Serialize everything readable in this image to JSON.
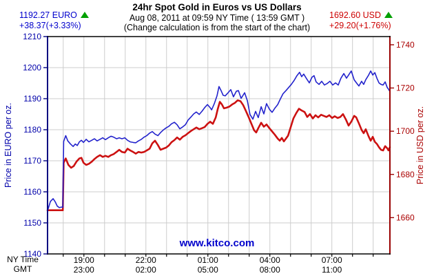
{
  "header": {
    "title": "24hr Spot Gold in Euros vs US Dollars",
    "subtitle": "Aug 08, 2011 at 09:59 NY Time ( 13:59 GMT )",
    "note": "(Change calculation is from the start of the chart)"
  },
  "quotes": {
    "euro": {
      "price": "1192.27 EURO",
      "change": "+38.37(+3.33%)",
      "direction": "up",
      "color": "#0000cc",
      "arrow_color": "#00a000"
    },
    "usd": {
      "price": "1692.60 USD",
      "change": "+29.20(+1.76%)",
      "direction": "up",
      "color": "#cc0000",
      "arrow_color": "#00a000"
    }
  },
  "watermark": {
    "text": "www.kitco.com",
    "color": "#0000cc"
  },
  "chart_data": {
    "type": "line",
    "title": "24hr Spot Gold in Euros vs US Dollars",
    "grid": true,
    "grid_color": "#cccccc",
    "spine_colors": {
      "left": "#000080",
      "right": "#990000",
      "top": "#000000",
      "bottom": "#000000"
    },
    "x_axis": {
      "t_min": 17.24,
      "t_max": 33.81,
      "grid_hours": [
        18,
        19,
        20,
        21,
        22,
        23,
        24,
        25,
        26,
        27,
        28,
        29,
        30,
        31,
        32,
        33
      ],
      "labels": [
        {
          "t": 19,
          "ny": "19:00",
          "gmt": "23:00"
        },
        {
          "t": 22,
          "ny": "22:00",
          "gmt": "02:00"
        },
        {
          "t": 25,
          "ny": "01:00",
          "gmt": "05:00"
        },
        {
          "t": 28,
          "ny": "04:00",
          "gmt": "08:00"
        },
        {
          "t": 31,
          "ny": "07:00",
          "gmt": "11:00"
        }
      ],
      "row_labels": {
        "ny": "NY Time",
        "gmt": "GMT"
      }
    },
    "y_left": {
      "label": "Price in EURO per oz.",
      "min": 1140,
      "max": 1210,
      "ticks": [
        1140,
        1150,
        1160,
        1170,
        1180,
        1190,
        1200,
        1210
      ],
      "grid_ticks": [
        1150,
        1160,
        1170,
        1180,
        1190,
        1200
      ],
      "color": "#0000aa"
    },
    "y_right": {
      "label": "Price in USD per oz.",
      "min": 1643.2,
      "max": 1743.8,
      "ticks": [
        1660,
        1680,
        1700,
        1720,
        1740
      ],
      "color": "#aa0000"
    },
    "series": [
      {
        "name": "Gold in USD",
        "axis": "right",
        "color": "#cc1111",
        "width": 2.6,
        "points": [
          [
            17.24,
            1663.4
          ],
          [
            17.98,
            1663.4
          ],
          [
            18.02,
            1685.4
          ],
          [
            18.12,
            1687.4
          ],
          [
            18.25,
            1684.4
          ],
          [
            18.38,
            1683.1
          ],
          [
            18.51,
            1683.9
          ],
          [
            18.64,
            1685.9
          ],
          [
            18.78,
            1687.4
          ],
          [
            18.88,
            1687.7
          ],
          [
            18.98,
            1685.4
          ],
          [
            19.11,
            1684.4
          ],
          [
            19.24,
            1684.9
          ],
          [
            19.38,
            1685.9
          ],
          [
            19.51,
            1687.1
          ],
          [
            19.64,
            1688.1
          ],
          [
            19.78,
            1688.9
          ],
          [
            19.91,
            1688.1
          ],
          [
            20.04,
            1688.6
          ],
          [
            20.18,
            1688.1
          ],
          [
            20.31,
            1688.9
          ],
          [
            20.44,
            1689.4
          ],
          [
            20.58,
            1690.4
          ],
          [
            20.71,
            1691.4
          ],
          [
            20.84,
            1690.4
          ],
          [
            20.98,
            1690.1
          ],
          [
            21.11,
            1691.9
          ],
          [
            21.24,
            1691.1
          ],
          [
            21.38,
            1690.4
          ],
          [
            21.51,
            1689.6
          ],
          [
            21.64,
            1690.4
          ],
          [
            21.78,
            1690.1
          ],
          [
            21.91,
            1690.4
          ],
          [
            22.04,
            1691.1
          ],
          [
            22.18,
            1691.9
          ],
          [
            22.31,
            1694.4
          ],
          [
            22.44,
            1695.6
          ],
          [
            22.58,
            1693.6
          ],
          [
            22.71,
            1691.4
          ],
          [
            22.84,
            1691.9
          ],
          [
            22.98,
            1692.4
          ],
          [
            23.11,
            1693.4
          ],
          [
            23.24,
            1694.9
          ],
          [
            23.38,
            1695.9
          ],
          [
            23.51,
            1697.1
          ],
          [
            23.64,
            1696.1
          ],
          [
            23.78,
            1697.4
          ],
          [
            23.91,
            1698.1
          ],
          [
            24.04,
            1699.1
          ],
          [
            24.18,
            1700.1
          ],
          [
            24.31,
            1700.9
          ],
          [
            24.44,
            1701.7
          ],
          [
            24.58,
            1700.9
          ],
          [
            24.71,
            1701.4
          ],
          [
            24.84,
            1701.9
          ],
          [
            24.98,
            1703.4
          ],
          [
            25.11,
            1704.4
          ],
          [
            25.24,
            1703.4
          ],
          [
            25.38,
            1706.4
          ],
          [
            25.48,
            1710.4
          ],
          [
            25.58,
            1713.6
          ],
          [
            25.68,
            1712.4
          ],
          [
            25.78,
            1710.6
          ],
          [
            25.91,
            1710.9
          ],
          [
            26.04,
            1711.4
          ],
          [
            26.18,
            1712.4
          ],
          [
            26.31,
            1713.1
          ],
          [
            26.44,
            1714.3
          ],
          [
            26.58,
            1713.9
          ],
          [
            26.71,
            1712.1
          ],
          [
            26.84,
            1709.4
          ],
          [
            26.98,
            1706.4
          ],
          [
            27.11,
            1703.4
          ],
          [
            27.24,
            1700.4
          ],
          [
            27.34,
            1699.4
          ],
          [
            27.44,
            1701.4
          ],
          [
            27.58,
            1703.9
          ],
          [
            27.71,
            1702.1
          ],
          [
            27.84,
            1703.1
          ],
          [
            27.98,
            1701.4
          ],
          [
            28.11,
            1699.9
          ],
          [
            28.24,
            1698.4
          ],
          [
            28.38,
            1696.6
          ],
          [
            28.48,
            1695.6
          ],
          [
            28.58,
            1696.9
          ],
          [
            28.68,
            1695.3
          ],
          [
            28.78,
            1696.6
          ],
          [
            28.88,
            1697.9
          ],
          [
            29.01,
            1701.9
          ],
          [
            29.14,
            1705.9
          ],
          [
            29.28,
            1708.4
          ],
          [
            29.41,
            1710.4
          ],
          [
            29.54,
            1709.6
          ],
          [
            29.68,
            1708.9
          ],
          [
            29.81,
            1706.6
          ],
          [
            29.94,
            1707.9
          ],
          [
            30.08,
            1705.9
          ],
          [
            30.21,
            1707.4
          ],
          [
            30.34,
            1706.4
          ],
          [
            30.48,
            1707.6
          ],
          [
            30.61,
            1707.1
          ],
          [
            30.74,
            1706.6
          ],
          [
            30.88,
            1707.4
          ],
          [
            31.01,
            1706.1
          ],
          [
            31.14,
            1706.9
          ],
          [
            31.28,
            1706.1
          ],
          [
            31.41,
            1706.6
          ],
          [
            31.54,
            1707.9
          ],
          [
            31.68,
            1705.4
          ],
          [
            31.81,
            1702.6
          ],
          [
            31.94,
            1704.4
          ],
          [
            32.08,
            1707.1
          ],
          [
            32.18,
            1706.4
          ],
          [
            32.31,
            1703.6
          ],
          [
            32.44,
            1700.6
          ],
          [
            32.54,
            1699.1
          ],
          [
            32.64,
            1700.9
          ],
          [
            32.78,
            1697.6
          ],
          [
            32.88,
            1695.6
          ],
          [
            32.98,
            1697.4
          ],
          [
            33.08,
            1695.1
          ],
          [
            33.18,
            1694.1
          ],
          [
            33.28,
            1692.6
          ],
          [
            33.38,
            1691.4
          ],
          [
            33.48,
            1691.1
          ],
          [
            33.58,
            1693.1
          ],
          [
            33.68,
            1692.1
          ],
          [
            33.74,
            1691.1
          ],
          [
            33.81,
            1692.6
          ]
        ]
      },
      {
        "name": "Gold in EUR",
        "axis": "left",
        "color": "#2222cc",
        "width": 1.6,
        "points": [
          [
            17.24,
            1153.9
          ],
          [
            17.31,
            1155.4
          ],
          [
            17.38,
            1156.9
          ],
          [
            17.51,
            1157.8
          ],
          [
            17.61,
            1156.8
          ],
          [
            17.71,
            1155.4
          ],
          [
            17.81,
            1154.9
          ],
          [
            17.91,
            1155.1
          ],
          [
            17.98,
            1155.0
          ],
          [
            18.02,
            1176.2
          ],
          [
            18.12,
            1178.1
          ],
          [
            18.22,
            1176.4
          ],
          [
            18.35,
            1175.4
          ],
          [
            18.48,
            1174.6
          ],
          [
            18.58,
            1175.4
          ],
          [
            18.68,
            1174.9
          ],
          [
            18.78,
            1176.1
          ],
          [
            18.88,
            1176.6
          ],
          [
            18.98,
            1175.9
          ],
          [
            19.11,
            1176.9
          ],
          [
            19.24,
            1176.1
          ],
          [
            19.38,
            1176.6
          ],
          [
            19.51,
            1177.1
          ],
          [
            19.64,
            1176.4
          ],
          [
            19.78,
            1176.9
          ],
          [
            19.91,
            1177.4
          ],
          [
            20.04,
            1176.8
          ],
          [
            20.18,
            1177.4
          ],
          [
            20.31,
            1177.9
          ],
          [
            20.44,
            1177.6
          ],
          [
            20.58,
            1177.1
          ],
          [
            20.71,
            1177.4
          ],
          [
            20.84,
            1177.1
          ],
          [
            20.98,
            1177.4
          ],
          [
            21.11,
            1176.6
          ],
          [
            21.24,
            1176.1
          ],
          [
            21.38,
            1175.9
          ],
          [
            21.51,
            1175.8
          ],
          [
            21.64,
            1176.4
          ],
          [
            21.78,
            1176.9
          ],
          [
            21.91,
            1177.6
          ],
          [
            22.04,
            1178.1
          ],
          [
            22.18,
            1178.9
          ],
          [
            22.31,
            1179.4
          ],
          [
            22.44,
            1178.6
          ],
          [
            22.58,
            1178.1
          ],
          [
            22.71,
            1179.1
          ],
          [
            22.84,
            1179.9
          ],
          [
            22.98,
            1180.6
          ],
          [
            23.11,
            1181.1
          ],
          [
            23.24,
            1181.9
          ],
          [
            23.38,
            1182.4
          ],
          [
            23.51,
            1181.6
          ],
          [
            23.64,
            1180.3
          ],
          [
            23.78,
            1180.9
          ],
          [
            23.91,
            1181.6
          ],
          [
            24.04,
            1183.1
          ],
          [
            24.18,
            1184.1
          ],
          [
            24.31,
            1185.1
          ],
          [
            24.44,
            1185.7
          ],
          [
            24.58,
            1184.9
          ],
          [
            24.71,
            1185.9
          ],
          [
            24.84,
            1187.1
          ],
          [
            24.98,
            1188.1
          ],
          [
            25.11,
            1187.1
          ],
          [
            25.18,
            1186.4
          ],
          [
            25.31,
            1188.4
          ],
          [
            25.44,
            1190.9
          ],
          [
            25.54,
            1193.9
          ],
          [
            25.64,
            1192.6
          ],
          [
            25.74,
            1191.1
          ],
          [
            25.84,
            1190.9
          ],
          [
            25.98,
            1191.9
          ],
          [
            26.11,
            1192.9
          ],
          [
            26.24,
            1190.6
          ],
          [
            26.38,
            1192.4
          ],
          [
            26.48,
            1192.6
          ],
          [
            26.61,
            1190.1
          ],
          [
            26.78,
            1191.9
          ],
          [
            26.91,
            1189.4
          ],
          [
            27.04,
            1184.9
          ],
          [
            27.18,
            1183.4
          ],
          [
            27.31,
            1185.9
          ],
          [
            27.44,
            1183.9
          ],
          [
            27.58,
            1187.4
          ],
          [
            27.71,
            1185.1
          ],
          [
            27.84,
            1188.4
          ],
          [
            27.98,
            1186.6
          ],
          [
            28.11,
            1185.6
          ],
          [
            28.24,
            1186.9
          ],
          [
            28.38,
            1188.1
          ],
          [
            28.51,
            1189.9
          ],
          [
            28.64,
            1191.6
          ],
          [
            28.78,
            1192.6
          ],
          [
            28.91,
            1193.6
          ],
          [
            29.04,
            1194.6
          ],
          [
            29.18,
            1195.9
          ],
          [
            29.31,
            1197.4
          ],
          [
            29.44,
            1198.5
          ],
          [
            29.54,
            1197.1
          ],
          [
            29.64,
            1197.9
          ],
          [
            29.78,
            1196.4
          ],
          [
            29.91,
            1195.1
          ],
          [
            30.04,
            1196.9
          ],
          [
            30.14,
            1197.4
          ],
          [
            30.24,
            1195.4
          ],
          [
            30.38,
            1194.6
          ],
          [
            30.51,
            1195.6
          ],
          [
            30.64,
            1194.4
          ],
          [
            30.78,
            1194.9
          ],
          [
            30.91,
            1195.6
          ],
          [
            31.04,
            1194.4
          ],
          [
            31.18,
            1195.1
          ],
          [
            31.31,
            1194.4
          ],
          [
            31.44,
            1196.6
          ],
          [
            31.58,
            1198.1
          ],
          [
            31.71,
            1196.6
          ],
          [
            31.84,
            1197.9
          ],
          [
            31.94,
            1198.9
          ],
          [
            32.08,
            1196.1
          ],
          [
            32.21,
            1194.9
          ],
          [
            32.31,
            1194.1
          ],
          [
            32.44,
            1195.6
          ],
          [
            32.54,
            1194.6
          ],
          [
            32.64,
            1196.1
          ],
          [
            32.78,
            1197.6
          ],
          [
            32.88,
            1198.9
          ],
          [
            32.98,
            1197.6
          ],
          [
            33.08,
            1198.4
          ],
          [
            33.18,
            1196.6
          ],
          [
            33.28,
            1195.1
          ],
          [
            33.38,
            1194.6
          ],
          [
            33.48,
            1194.4
          ],
          [
            33.58,
            1195.4
          ],
          [
            33.68,
            1193.6
          ],
          [
            33.74,
            1193.1
          ],
          [
            33.81,
            1192.3
          ]
        ]
      }
    ]
  }
}
